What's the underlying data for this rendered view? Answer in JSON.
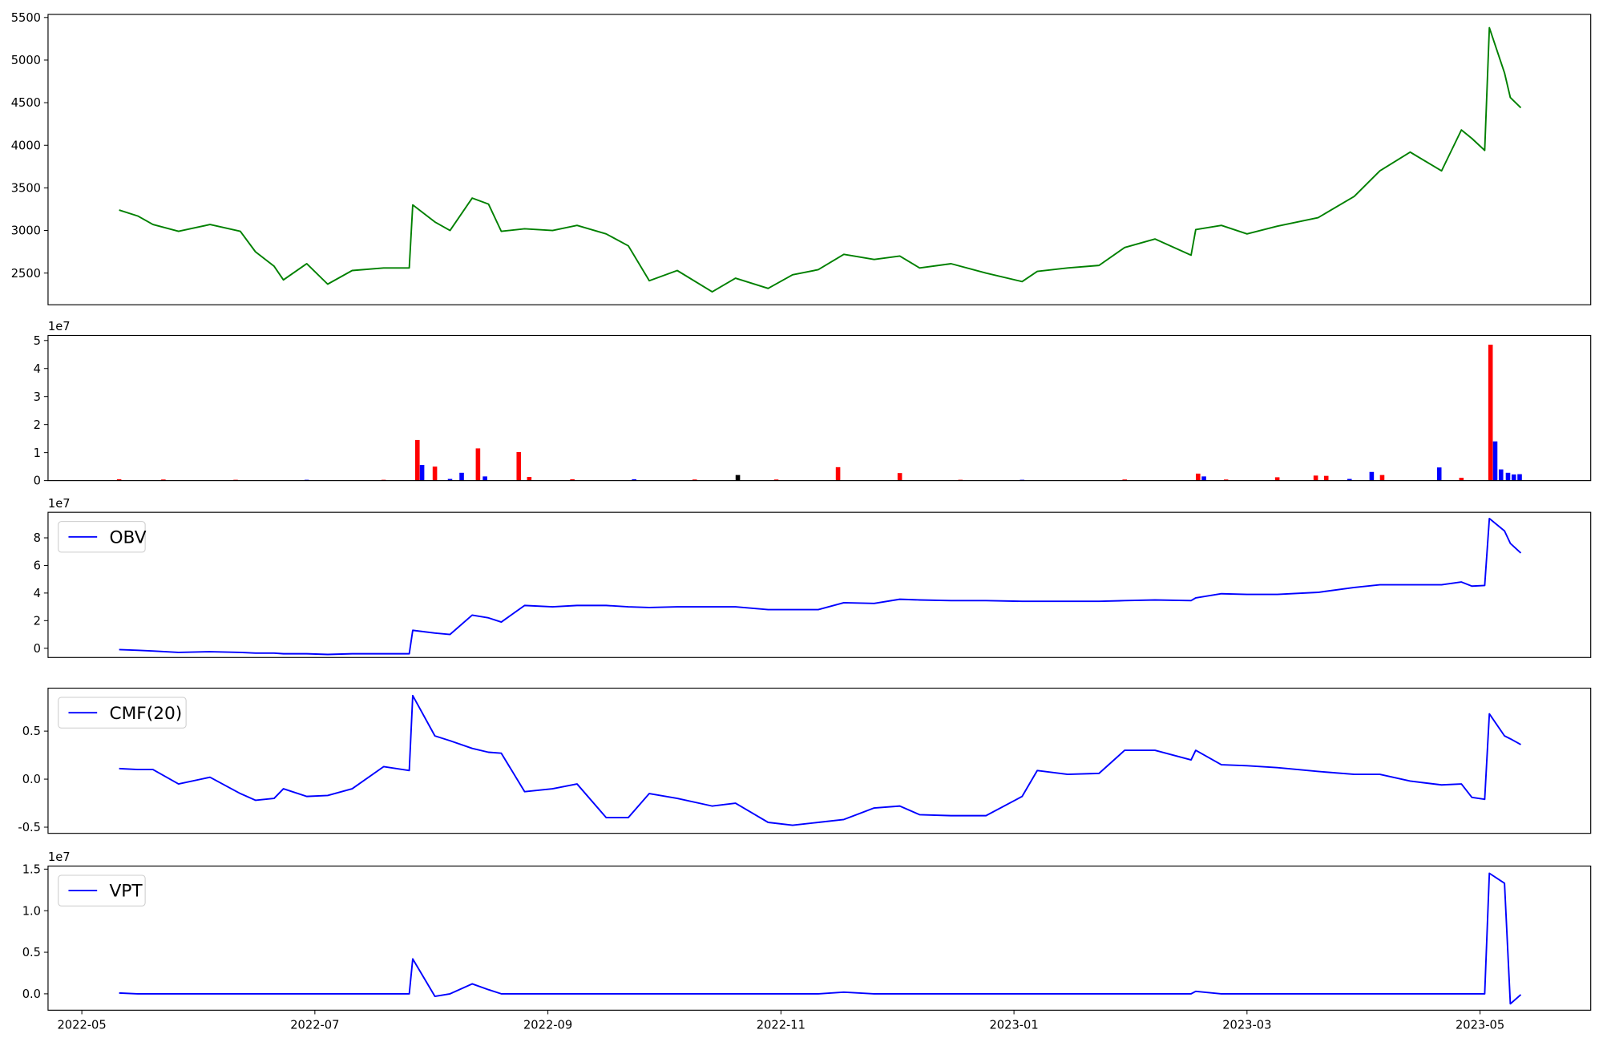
{
  "chart_data": [
    {
      "type": "line",
      "xlim": [
        -0.29,
        12.95
      ],
      "ylim": [
        2128,
        5536
      ],
      "yticks": [
        2500,
        3000,
        3500,
        4000,
        4500,
        5000,
        5500
      ],
      "grid": false,
      "x": [
        0.32,
        0.48,
        0.61,
        0.83,
        1.1,
        1.36,
        1.49,
        1.65,
        1.73,
        1.93,
        2.11,
        2.32,
        2.59,
        2.81,
        2.84,
        3.03,
        3.16,
        3.35,
        3.49,
        3.6,
        3.8,
        4.04,
        4.25,
        4.5,
        4.69,
        4.87,
        5.11,
        5.41,
        5.61,
        5.89,
        6.1,
        6.32,
        6.54,
        6.8,
        7.02,
        7.19,
        7.46,
        7.76,
        8.07,
        8.2,
        8.46,
        8.73,
        8.95,
        9.21,
        9.52,
        9.56,
        9.78,
        10.0,
        10.26,
        10.61,
        10.92,
        11.14,
        11.4,
        11.67,
        11.84,
        11.93,
        12.04,
        12.08,
        12.21,
        12.26,
        12.35
      ],
      "series": [
        {
          "color": "#008000",
          "values": [
            3240,
            3170,
            3070,
            2990,
            3070,
            2990,
            2750,
            2580,
            2420,
            2610,
            2370,
            2530,
            2560,
            2560,
            3300,
            3100,
            3000,
            3380,
            3310,
            2990,
            3020,
            3000,
            3060,
            2960,
            2820,
            2410,
            2530,
            2280,
            2440,
            2320,
            2480,
            2540,
            2720,
            2660,
            2700,
            2560,
            2610,
            2500,
            2400,
            2520,
            2560,
            2590,
            2800,
            2900,
            2710,
            3010,
            3060,
            2960,
            3050,
            3150,
            3400,
            3700,
            3920,
            3700,
            4180,
            4080,
            3940,
            5380,
            4850,
            4560,
            4440
          ]
        }
      ]
    },
    {
      "type": "bar",
      "xlim": [
        -0.29,
        12.95
      ],
      "ylim": [
        0,
        51800000
      ],
      "offset_label": "1e7",
      "yticks": [
        0,
        {
          "value": 10000000,
          "label": "1"
        },
        {
          "value": 20000000,
          "label": "2"
        },
        {
          "value": 30000000,
          "label": "3"
        },
        {
          "value": 40000000,
          "label": "4"
        },
        {
          "value": 50000000,
          "label": "5"
        }
      ],
      "x": [
        0.32,
        0.7,
        1.32,
        1.93,
        2.59,
        2.88,
        2.92,
        3.03,
        3.16,
        3.26,
        3.4,
        3.46,
        3.75,
        3.84,
        4.21,
        4.74,
        5.26,
        5.63,
        5.96,
        6.49,
        7.02,
        7.54,
        8.07,
        8.95,
        9.58,
        9.63,
        9.82,
        10.26,
        10.59,
        10.68,
        10.88,
        11.07,
        11.16,
        11.65,
        11.84,
        12.09,
        12.13,
        12.18,
        12.24,
        12.29,
        12.34
      ],
      "values": [
        500000,
        400000,
        300000,
        300000,
        300000,
        14500000,
        5600000,
        5000000,
        600000,
        2800000,
        11500000,
        1500000,
        10200000,
        1300000,
        500000,
        500000,
        400000,
        2000000,
        400000,
        4800000,
        2700000,
        300000,
        300000,
        400000,
        2500000,
        1500000,
        400000,
        1200000,
        1800000,
        1700000,
        600000,
        3100000,
        2000000,
        4700000,
        1000000,
        48500000,
        14000000,
        4000000,
        2800000,
        2200000,
        2300000
      ],
      "colors": [
        "red",
        "red",
        "red",
        "blue",
        "red",
        "red",
        "blue",
        "red",
        "blue",
        "blue",
        "red",
        "blue",
        "red",
        "red",
        "red",
        "blue",
        "red",
        "black",
        "red",
        "red",
        "red",
        "red",
        "blue",
        "red",
        "red",
        "blue",
        "red",
        "red",
        "red",
        "red",
        "blue",
        "blue",
        "red",
        "blue",
        "red",
        "red",
        "blue",
        "blue",
        "blue",
        "blue",
        "blue"
      ]
    },
    {
      "type": "line",
      "xlim": [
        -0.29,
        12.95
      ],
      "ylim": [
        -6700000,
        98500000
      ],
      "offset_label": "1e7",
      "legend": "upper left",
      "yticks": [
        0,
        {
          "value": 20000000,
          "label": "2"
        },
        {
          "value": 40000000,
          "label": "4"
        },
        {
          "value": 60000000,
          "label": "6"
        },
        {
          "value": 80000000,
          "label": "8"
        }
      ],
      "x": [
        0.32,
        0.48,
        0.61,
        0.83,
        1.1,
        1.36,
        1.49,
        1.65,
        1.73,
        1.93,
        2.11,
        2.32,
        2.59,
        2.81,
        2.84,
        3.03,
        3.16,
        3.35,
        3.49,
        3.6,
        3.8,
        4.04,
        4.25,
        4.5,
        4.69,
        4.87,
        5.11,
        5.41,
        5.61,
        5.89,
        6.1,
        6.32,
        6.54,
        6.8,
        7.02,
        7.19,
        7.46,
        7.76,
        8.07,
        8.2,
        8.46,
        8.73,
        8.95,
        9.21,
        9.52,
        9.56,
        9.78,
        10.0,
        10.26,
        10.61,
        10.92,
        11.14,
        11.4,
        11.67,
        11.84,
        11.93,
        12.04,
        12.08,
        12.21,
        12.26,
        12.35
      ],
      "series": [
        {
          "name": "OBV",
          "color": "blue",
          "values": [
            -1000000,
            -1500000,
            -2000000,
            -3000000,
            -2500000,
            -3000000,
            -3500000,
            -3500000,
            -4000000,
            -4000000,
            -4500000,
            -4000000,
            -4000000,
            -4000000,
            13000000,
            11000000,
            10000000,
            24000000,
            22000000,
            19000000,
            31000000,
            30000000,
            31000000,
            31000000,
            30000000,
            29500000,
            30000000,
            30000000,
            30000000,
            28000000,
            28000000,
            28000000,
            33000000,
            32500000,
            35500000,
            35000000,
            34500000,
            34500000,
            34000000,
            34000000,
            34000000,
            34000000,
            34500000,
            35000000,
            34500000,
            36500000,
            39500000,
            39000000,
            39000000,
            40500000,
            44000000,
            46000000,
            46000000,
            46000000,
            48000000,
            45000000,
            45500000,
            94000000,
            85000000,
            76000000,
            69000000
          ]
        }
      ]
    },
    {
      "type": "line",
      "xlim": [
        -0.29,
        12.95
      ],
      "ylim": [
        -0.564,
        0.947
      ],
      "legend": "upper left",
      "yticks": [
        -0.5,
        {
          "value": 0,
          "label": "0.0"
        },
        0.5
      ],
      "x": [
        0.32,
        0.48,
        0.61,
        0.83,
        1.1,
        1.36,
        1.49,
        1.65,
        1.73,
        1.93,
        2.11,
        2.32,
        2.59,
        2.81,
        2.84,
        3.03,
        3.16,
        3.35,
        3.49,
        3.6,
        3.8,
        4.04,
        4.25,
        4.5,
        4.69,
        4.87,
        5.11,
        5.41,
        5.61,
        5.89,
        6.1,
        6.32,
        6.54,
        6.8,
        7.02,
        7.19,
        7.46,
        7.76,
        8.07,
        8.2,
        8.46,
        8.73,
        8.95,
        9.21,
        9.52,
        9.56,
        9.78,
        10.0,
        10.26,
        10.61,
        10.92,
        11.14,
        11.4,
        11.67,
        11.84,
        11.93,
        12.04,
        12.08,
        12.21,
        12.26,
        12.35
      ],
      "series": [
        {
          "name": "CMF(20)",
          "color": "blue",
          "values": [
            0.11,
            0.1,
            0.1,
            -0.05,
            0.02,
            -0.15,
            -0.22,
            -0.2,
            -0.1,
            -0.18,
            -0.17,
            -0.1,
            0.13,
            0.09,
            0.87,
            0.45,
            0.4,
            0.32,
            0.28,
            0.27,
            -0.13,
            -0.1,
            -0.05,
            -0.4,
            -0.4,
            -0.15,
            -0.2,
            -0.28,
            -0.25,
            -0.45,
            -0.48,
            -0.45,
            -0.42,
            -0.3,
            -0.28,
            -0.37,
            -0.38,
            -0.38,
            -0.18,
            0.09,
            0.05,
            0.06,
            0.3,
            0.3,
            0.2,
            0.3,
            0.15,
            0.14,
            0.12,
            0.08,
            0.05,
            0.05,
            -0.02,
            -0.06,
            -0.05,
            -0.19,
            -0.21,
            0.68,
            0.45,
            0.42,
            0.36
          ]
        }
      ]
    },
    {
      "type": "line",
      "xlim": [
        -0.29,
        12.95
      ],
      "ylim": [
        -1970000,
        15370000
      ],
      "offset_label": "1e7",
      "legend": "upper left",
      "yticks": [
        {
          "value": 0,
          "label": "0.0"
        },
        {
          "value": 5000000,
          "label": "0.5"
        },
        {
          "value": 10000000,
          "label": "1.0"
        },
        {
          "value": 15000000,
          "label": "1.5"
        }
      ],
      "xticks": [
        {
          "value": 0,
          "label": "2022-05"
        },
        {
          "value": 2,
          "label": "2022-07"
        },
        {
          "value": 4,
          "label": "2022-09"
        },
        {
          "value": 6,
          "label": "2022-11"
        },
        {
          "value": 8,
          "label": "2023-01"
        },
        {
          "value": 10,
          "label": "2023-03"
        },
        {
          "value": 12,
          "label": "2023-05"
        }
      ],
      "x": [
        0.32,
        0.48,
        0.61,
        0.83,
        1.1,
        1.36,
        1.49,
        1.65,
        1.73,
        1.93,
        2.11,
        2.32,
        2.59,
        2.81,
        2.84,
        3.03,
        3.16,
        3.35,
        3.49,
        3.6,
        3.8,
        4.04,
        4.25,
        4.5,
        4.69,
        4.87,
        5.11,
        5.41,
        5.61,
        5.89,
        6.1,
        6.32,
        6.54,
        6.8,
        7.02,
        7.19,
        7.46,
        7.76,
        8.07,
        8.2,
        8.46,
        8.73,
        8.95,
        9.21,
        9.52,
        9.56,
        9.78,
        10.0,
        10.26,
        10.61,
        10.92,
        11.14,
        11.4,
        11.67,
        11.84,
        11.93,
        12.04,
        12.08,
        12.21,
        12.26,
        12.35
      ],
      "series": [
        {
          "name": "VPT",
          "color": "blue",
          "values": [
            100000,
            0,
            0,
            0,
            0,
            0,
            0,
            0,
            0,
            0,
            0,
            0,
            0,
            0,
            4200000,
            -300000,
            0,
            1200000,
            500000,
            0,
            0,
            0,
            0,
            0,
            0,
            0,
            0,
            0,
            0,
            0,
            0,
            0,
            200000,
            0,
            0,
            0,
            0,
            0,
            0,
            0,
            0,
            0,
            0,
            0,
            0,
            300000,
            0,
            0,
            0,
            0,
            0,
            0,
            0,
            0,
            0,
            0,
            0,
            14500000,
            13300000,
            -1200000,
            -100000
          ]
        }
      ]
    }
  ]
}
